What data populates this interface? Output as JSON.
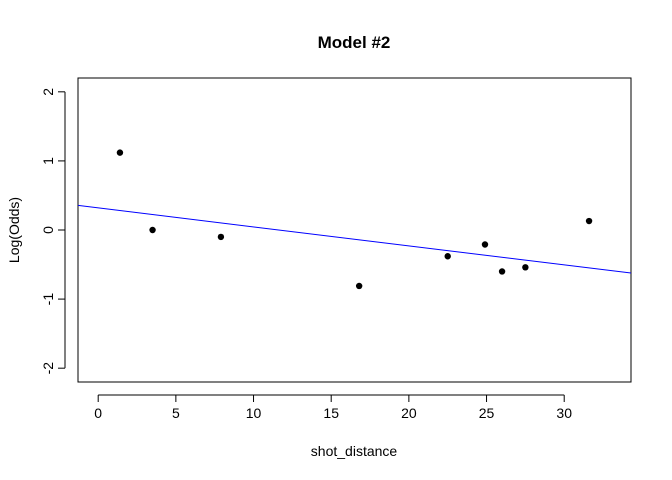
{
  "chart_data": {
    "type": "scatter",
    "title": "Model #2",
    "xlabel": "shot_distance",
    "ylabel": "Log(Odds)",
    "xlim": [
      -1.3,
      34.3
    ],
    "ylim": [
      -2.2,
      2.2
    ],
    "xticks": [
      0,
      5,
      10,
      15,
      20,
      25,
      30
    ],
    "yticks": [
      -2,
      -1,
      0,
      1,
      2
    ],
    "grid": false,
    "points": {
      "x": [
        1.4,
        3.5,
        7.9,
        16.8,
        22.5,
        24.9,
        26.0,
        27.5,
        31.6
      ],
      "y": [
        1.12,
        0.0,
        -0.1,
        -0.81,
        -0.38,
        -0.21,
        -0.6,
        -0.54,
        0.13
      ],
      "color": "#000000"
    },
    "fit_line": {
      "intercept": 0.32,
      "slope": -0.0275,
      "color": "#0000ff"
    }
  }
}
